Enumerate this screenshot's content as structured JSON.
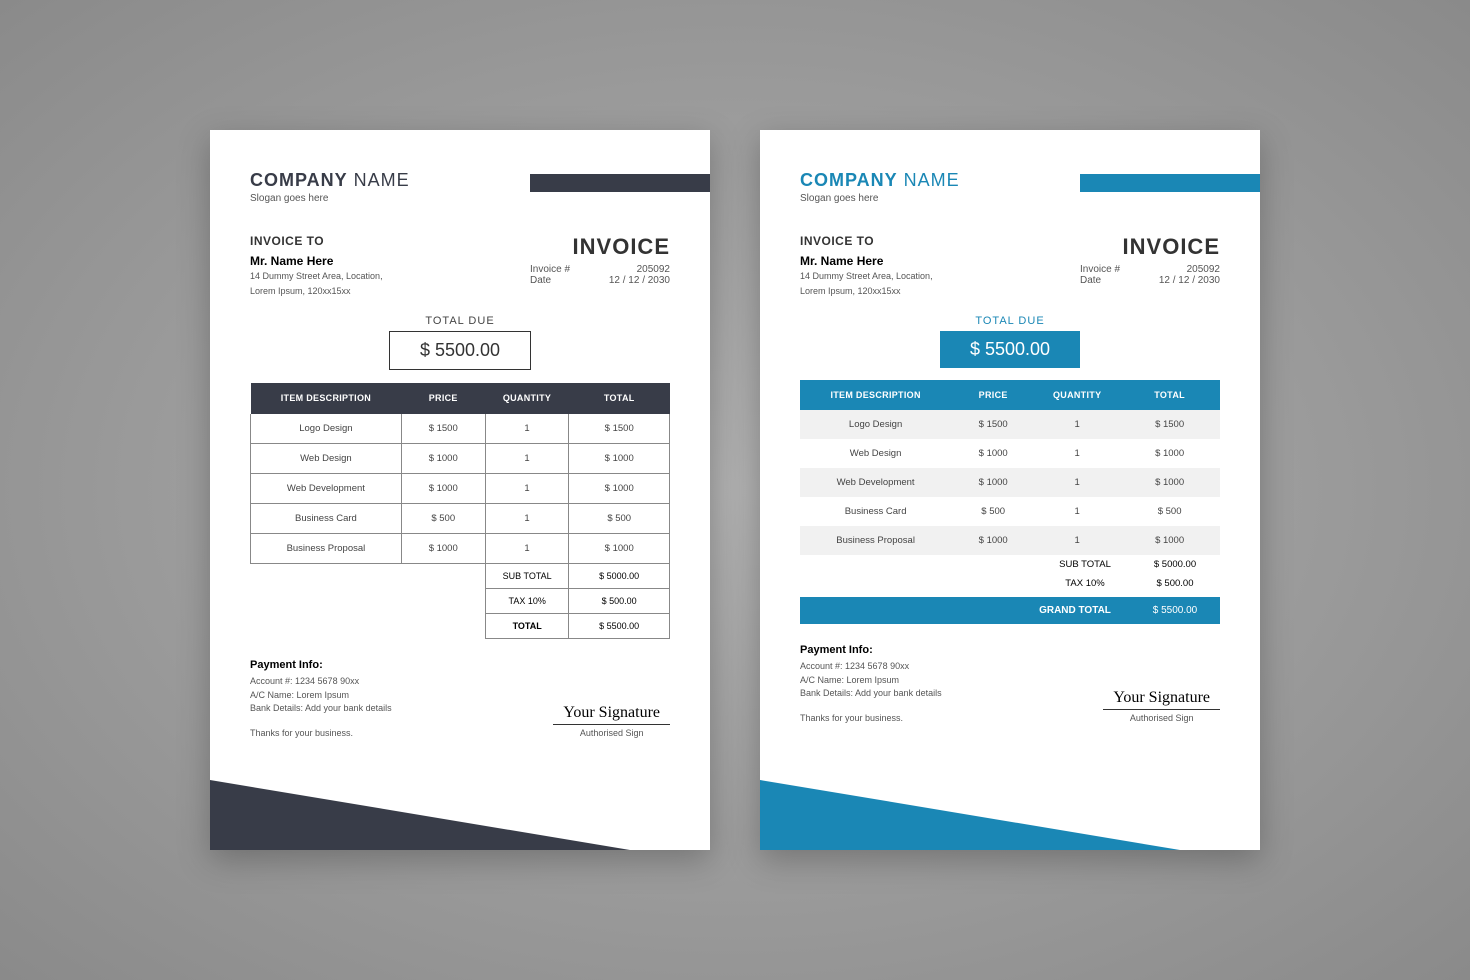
{
  "colors": {
    "variant1_accent": "#383c48",
    "variant1_shadow": "#2a2d36",
    "variant2_accent": "#1a87b5",
    "variant2_shadow": "#146d93",
    "page_bg": "#ffffff",
    "text_muted": "#555555"
  },
  "company": {
    "name_bold": "COMPANY",
    "name_light": " NAME",
    "slogan": "Slogan goes here"
  },
  "bill_to": {
    "label": "INVOICE TO",
    "name": "Mr. Name Here",
    "line1": "14 Dummy Street Area, Location,",
    "line2": "Lorem Ipsum, 120xx15xx"
  },
  "invoice": {
    "title": "INVOICE",
    "number_label": "Invoice #",
    "number": "205092",
    "date_label": "Date",
    "date": "12 / 12 / 2030"
  },
  "total_due": {
    "label": "TOTAL DUE",
    "value": "$ 5500.00"
  },
  "table": {
    "headers": {
      "desc": "ITEM DESCRIPTION",
      "price": "PRICE",
      "qty": "QUANTITY",
      "total": "TOTAL"
    },
    "rows": [
      {
        "desc": "Logo Design",
        "price": "$ 1500",
        "qty": "1",
        "total": "$ 1500"
      },
      {
        "desc": "Web Design",
        "price": "$ 1000",
        "qty": "1",
        "total": "$ 1000"
      },
      {
        "desc": "Web Development",
        "price": "$ 1000",
        "qty": "1",
        "total": "$ 1000"
      },
      {
        "desc": "Business Card",
        "price": "$ 500",
        "qty": "1",
        "total": "$ 500"
      },
      {
        "desc": "Business Proposal",
        "price": "$ 1000",
        "qty": "1",
        "total": "$ 1000"
      }
    ]
  },
  "summary": {
    "subtotal_label": "SUB TOTAL",
    "subtotal": "$ 5000.00",
    "tax_label": "TAX 10%",
    "tax": "$ 500.00",
    "total_label_v1": "TOTAL",
    "total_label_v2": "GRAND TOTAL",
    "total": "$ 5500.00"
  },
  "payment": {
    "title": "Payment Info:",
    "account": "Account #: 1234 5678 90xx",
    "ac_name": "A/C Name: Lorem Ipsum",
    "bank": "Bank Details: Add your bank details"
  },
  "thanks": "Thanks for your business.",
  "signature": {
    "script": "Your Signature",
    "label": "Authorised Sign"
  }
}
